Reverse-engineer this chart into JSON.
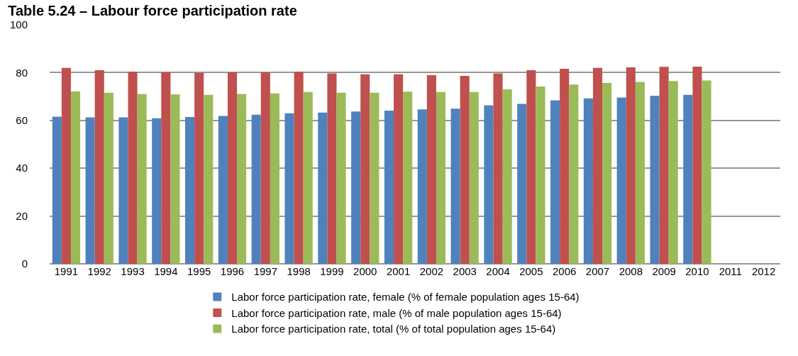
{
  "chart_data": {
    "type": "bar",
    "title": "Table 5.24 – Labour force participation rate",
    "categories": [
      "1991",
      "1992",
      "1993",
      "1994",
      "1995",
      "1996",
      "1997",
      "1998",
      "1999",
      "2000",
      "2001",
      "2002",
      "2003",
      "2004",
      "2005",
      "2006",
      "2007",
      "2008",
      "2009",
      "2010",
      "2011",
      "2012"
    ],
    "series": [
      {
        "name": "Labor force participation rate, female (% of female population ages 15-64)",
        "color": "#4f81bd",
        "values": [
          61.6,
          61.3,
          61.3,
          60.9,
          61.4,
          61.9,
          62.4,
          63.0,
          63.3,
          63.7,
          64.1,
          64.6,
          64.9,
          66.3,
          66.9,
          68.4,
          69.2,
          69.6,
          70.3,
          70.7,
          null,
          null
        ]
      },
      {
        "name": "Labor force participation rate, male (% of male population ages 15-64)",
        "color": "#c0504d",
        "values": [
          82.0,
          81.0,
          80.4,
          80.2,
          79.9,
          80.1,
          80.1,
          80.4,
          79.7,
          79.3,
          79.3,
          78.9,
          78.6,
          79.7,
          81.0,
          81.6,
          82.0,
          82.2,
          82.4,
          82.5,
          null,
          null
        ]
      },
      {
        "name": "Labor force participation rate, total (% of total population ages 15-64)",
        "color": "#9bbb59",
        "values": [
          72.1,
          71.6,
          71.1,
          70.9,
          70.7,
          71.1,
          71.3,
          71.9,
          71.6,
          71.6,
          72.0,
          71.9,
          71.9,
          73.0,
          74.2,
          75.0,
          75.7,
          76.1,
          76.5,
          76.7,
          null,
          null
        ]
      }
    ],
    "ylim": [
      0,
      100
    ],
    "yticks": [
      0,
      20,
      40,
      60,
      80,
      100
    ],
    "grid": "y",
    "legend": "bottom"
  }
}
